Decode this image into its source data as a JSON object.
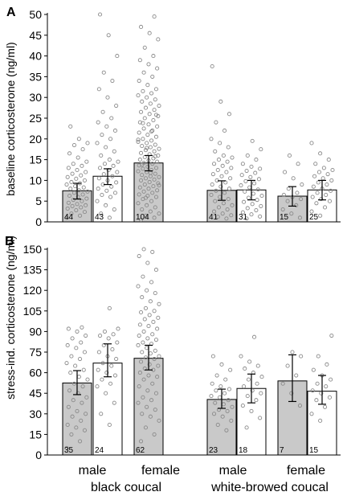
{
  "colors": {
    "grey_bar": "#c9c9c9",
    "white_bar": "#ffffff",
    "points": "#8a8a8a",
    "axis": "#000000"
  },
  "x_categories": {
    "black_coucal": {
      "male": "male",
      "female": "female",
      "species": "black coucal"
    },
    "white_browed_coucal": {
      "male": "male",
      "female": "female",
      "species": "white-browed coucal"
    }
  },
  "chart_data": [
    {
      "type": "bar",
      "panel_label": "A",
      "ylabel": "baseline corticosterone (ng/ml)",
      "ylim": [
        0,
        50
      ],
      "yticks": [
        0,
        5,
        10,
        15,
        20,
        25,
        30,
        35,
        40,
        45,
        50
      ],
      "grid": false,
      "bars": [
        {
          "group": "black coucal",
          "sex": "male",
          "fill": "grey",
          "value": 7.5,
          "ci": [
            5.5,
            9.3
          ],
          "n": "44",
          "points": [
            1.0,
            1.5,
            2.0,
            2.4,
            2.8,
            3.2,
            3.5,
            3.8,
            4.0,
            4.3,
            4.6,
            5.0,
            5.3,
            5.6,
            6.0,
            6.3,
            6.6,
            7.0,
            7.3,
            7.6,
            8.0,
            8.3,
            8.6,
            9.0,
            9.3,
            9.6,
            10.0,
            10.4,
            10.8,
            11.2,
            11.6,
            12.0,
            12.5,
            13.0,
            13.5,
            14.0,
            14.5,
            15.5,
            16.5,
            17.5,
            18.5,
            19.0,
            20.0,
            23.0
          ]
        },
        {
          "group": "black coucal",
          "sex": "male",
          "fill": "white",
          "value": 11.0,
          "ci": [
            9.0,
            12.8
          ],
          "n": "43",
          "points": [
            1.0,
            2.0,
            3.0,
            4.0,
            5.0,
            6.0,
            6.5,
            7.0,
            7.5,
            8.0,
            8.5,
            9.0,
            9.5,
            10.0,
            10.5,
            11.0,
            11.5,
            12.0,
            12.5,
            13.0,
            13.5,
            14.0,
            14.5,
            15.0,
            16.0,
            17.0,
            18.0,
            19.0,
            20.0,
            21.0,
            22.0,
            23.0,
            24.0,
            25.0,
            26.5,
            28.0,
            30.0,
            32.0,
            34.0,
            36.0,
            40.0,
            45.0,
            50.0
          ]
        },
        {
          "group": "black coucal",
          "sex": "female",
          "fill": "grey",
          "value": 14.2,
          "ci": [
            12.3,
            16.0
          ],
          "n": "104",
          "points": [
            0.5,
            1.0,
            1.5,
            2.0,
            2.5,
            3.0,
            3.5,
            4.0,
            4.5,
            5.0,
            5.5,
            6.0,
            6.3,
            6.6,
            7.0,
            7.3,
            7.6,
            8.0,
            8.3,
            8.6,
            9.0,
            9.3,
            9.6,
            10.0,
            10.2,
            10.5,
            10.8,
            11.0,
            11.3,
            11.6,
            12.0,
            12.2,
            12.5,
            12.8,
            13.0,
            13.3,
            13.6,
            14.0,
            14.2,
            14.5,
            14.8,
            15.0,
            15.3,
            15.6,
            16.0,
            16.3,
            16.6,
            17.0,
            17.3,
            17.6,
            18.0,
            18.3,
            18.6,
            19.0,
            19.3,
            19.6,
            20.0,
            20.5,
            21.0,
            21.5,
            22.0,
            22.5,
            23.0,
            23.5,
            24.0,
            24.5,
            25.0,
            25.5,
            26.0,
            26.5,
            27.0,
            27.5,
            28.0,
            28.5,
            29.0,
            29.5,
            30.0,
            30.5,
            31.0,
            31.5,
            32.0,
            33.0,
            34.0,
            35.0,
            36.0,
            37.0,
            38.0,
            39.0,
            40.0,
            42.0,
            44.0,
            45.5,
            47.0,
            49.5,
            5.8,
            8.8,
            11.8,
            13.8,
            15.8,
            17.8,
            19.8,
            21.8,
            23.8,
            25.8
          ]
        },
        {
          "group": "white-browed coucal",
          "sex": "male",
          "fill": "grey",
          "value": 7.6,
          "ci": [
            5.2,
            9.9
          ],
          "n": "41",
          "points": [
            0.8,
            1.2,
            1.6,
            2.0,
            2.5,
            3.0,
            3.5,
            4.0,
            4.5,
            5.0,
            5.5,
            6.0,
            6.5,
            7.0,
            7.5,
            8.0,
            8.5,
            9.0,
            9.5,
            10.0,
            10.5,
            11.0,
            11.5,
            12.0,
            12.5,
            13.0,
            13.5,
            14.0,
            14.5,
            15.0,
            15.5,
            16.0,
            17.0,
            18.0,
            19.0,
            20.0,
            22.0,
            24.0,
            26.0,
            29.0,
            37.5
          ]
        },
        {
          "group": "white-browed coucal",
          "sex": "female",
          "fill": "white",
          "value": 7.7,
          "ci": [
            5.3,
            10.0
          ],
          "n": "31",
          "points": [
            0.8,
            1.3,
            1.8,
            2.3,
            2.8,
            3.3,
            3.8,
            4.3,
            4.8,
            5.3,
            5.8,
            6.3,
            6.8,
            7.3,
            7.8,
            8.3,
            8.8,
            9.3,
            9.8,
            10.3,
            10.8,
            11.3,
            11.8,
            12.3,
            12.8,
            13.3,
            14.0,
            15.0,
            16.0,
            17.5,
            19.5
          ]
        },
        {
          "group": "white-browed coucal",
          "sex": "female",
          "fill": "grey",
          "value": 6.2,
          "ci": [
            3.8,
            8.5
          ],
          "n": "15",
          "points": [
            1.0,
            2.0,
            3.0,
            4.0,
            5.0,
            5.5,
            6.0,
            6.5,
            7.0,
            8.0,
            9.0,
            10.5,
            12.0,
            14.0,
            16.0
          ]
        },
        {
          "group": "white-browed coucal",
          "sex": "female",
          "fill": "white",
          "value": 7.7,
          "ci": [
            5.3,
            10.0
          ],
          "n": "25",
          "points": [
            1.5,
            2.5,
            3.5,
            4.5,
            5.0,
            5.5,
            6.0,
            6.5,
            7.0,
            7.5,
            8.0,
            8.5,
            9.0,
            9.5,
            10.0,
            10.5,
            11.0,
            11.5,
            12.0,
            12.5,
            13.0,
            14.0,
            15.0,
            16.5,
            19.0
          ]
        }
      ]
    },
    {
      "type": "bar",
      "panel_label": "B",
      "ylabel": "stress-ind. corticosterone (ng/ml)",
      "ylim": [
        0,
        150
      ],
      "yticks": [
        0,
        15,
        30,
        45,
        60,
        75,
        90,
        105,
        120,
        135,
        150
      ],
      "grid": false,
      "bars": [
        {
          "group": "black coucal",
          "sex": "male",
          "fill": "grey",
          "value": 52.5,
          "ci": [
            44.0,
            61.5
          ],
          "n": "35",
          "points": [
            5,
            10,
            15,
            18,
            20,
            22,
            25,
            28,
            30,
            32,
            35,
            38,
            40,
            42,
            45,
            47,
            50,
            52,
            55,
            57,
            60,
            62,
            65,
            67,
            70,
            72,
            75,
            78,
            80,
            82,
            85,
            87,
            90,
            92,
            93
          ]
        },
        {
          "group": "black coucal",
          "sex": "male",
          "fill": "white",
          "value": 67.0,
          "ci": [
            57.0,
            81.0
          ],
          "n": "24",
          "points": [
            22,
            30,
            38,
            45,
            50,
            52,
            55,
            58,
            60,
            62,
            65,
            67,
            70,
            72,
            75,
            77,
            80,
            82,
            85,
            87,
            88,
            90,
            92,
            107
          ]
        },
        {
          "group": "black coucal",
          "sex": "female",
          "fill": "grey",
          "value": 70.5,
          "ci": [
            62.0,
            80.0
          ],
          "n": "62",
          "points": [
            10,
            15,
            20,
            25,
            28,
            30,
            33,
            35,
            38,
            40,
            42,
            45,
            47,
            50,
            52,
            55,
            57,
            58,
            60,
            62,
            63,
            65,
            66,
            68,
            70,
            71,
            72,
            74,
            75,
            76,
            78,
            80,
            81,
            82,
            84,
            85,
            87,
            88,
            90,
            92,
            94,
            95,
            97,
            99,
            100,
            102,
            104,
            105,
            107,
            110,
            112,
            115,
            118,
            120,
            123,
            126,
            130,
            135,
            140,
            145,
            148,
            150
          ]
        },
        {
          "group": "white-browed coucal",
          "sex": "male",
          "fill": "grey",
          "value": 40.5,
          "ci": [
            34.0,
            48.0
          ],
          "n": "23",
          "points": [
            18,
            22,
            25,
            28,
            30,
            32,
            33,
            35,
            37,
            38,
            40,
            42,
            43,
            45,
            47,
            48,
            50,
            52,
            55,
            58,
            62,
            66,
            72
          ]
        },
        {
          "group": "white-browed coucal",
          "sex": "male",
          "fill": "white",
          "value": 48.5,
          "ci": [
            38.0,
            59.0
          ],
          "n": "18",
          "points": [
            20,
            27,
            32,
            36,
            40,
            43,
            45,
            47,
            50,
            52,
            55,
            57,
            60,
            63,
            65,
            68,
            72,
            86
          ]
        },
        {
          "group": "white-browed coucal",
          "sex": "female",
          "fill": "grey",
          "value": 54.0,
          "ci": [
            39.0,
            73.0
          ],
          "n": "7",
          "points": [
            36,
            45,
            52,
            58,
            65,
            72,
            75
          ]
        },
        {
          "group": "white-browed coucal",
          "sex": "female",
          "fill": "white",
          "value": 46.5,
          "ci": [
            37.0,
            58.0
          ],
          "n": "15",
          "points": [
            25,
            30,
            35,
            40,
            42,
            45,
            47,
            50,
            52,
            55,
            58,
            62,
            66,
            72,
            87
          ]
        }
      ]
    }
  ]
}
